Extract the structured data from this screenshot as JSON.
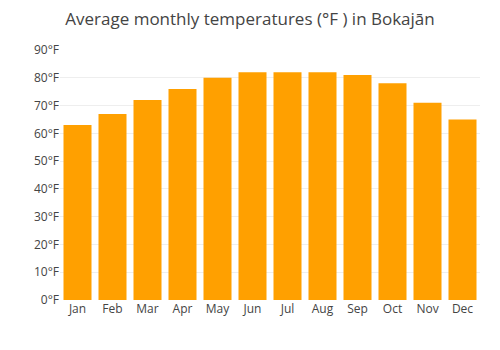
{
  "chart_data": {
    "type": "bar",
    "title": "Average monthly temperatures (°F ) in Bokajān",
    "categories": [
      "Jan",
      "Feb",
      "Mar",
      "Apr",
      "May",
      "Jun",
      "Jul",
      "Aug",
      "Sep",
      "Oct",
      "Nov",
      "Dec"
    ],
    "values": [
      63,
      67,
      72,
      76,
      80,
      82,
      82,
      82,
      81,
      78,
      71,
      65
    ],
    "color": "#FFA000",
    "ylim": [
      0,
      90
    ],
    "yticks": [
      {
        "value": 0,
        "label": "0°F"
      },
      {
        "value": 10,
        "label": "10°F"
      },
      {
        "value": 20,
        "label": "20°F"
      },
      {
        "value": 30,
        "label": "30°F"
      },
      {
        "value": 40,
        "label": "40°F"
      },
      {
        "value": 50,
        "label": "50°F"
      },
      {
        "value": 60,
        "label": "60°F"
      },
      {
        "value": 70,
        "label": "70°F"
      },
      {
        "value": 80,
        "label": "80°F"
      },
      {
        "value": 90,
        "label": "90°F"
      }
    ],
    "grid": true
  }
}
